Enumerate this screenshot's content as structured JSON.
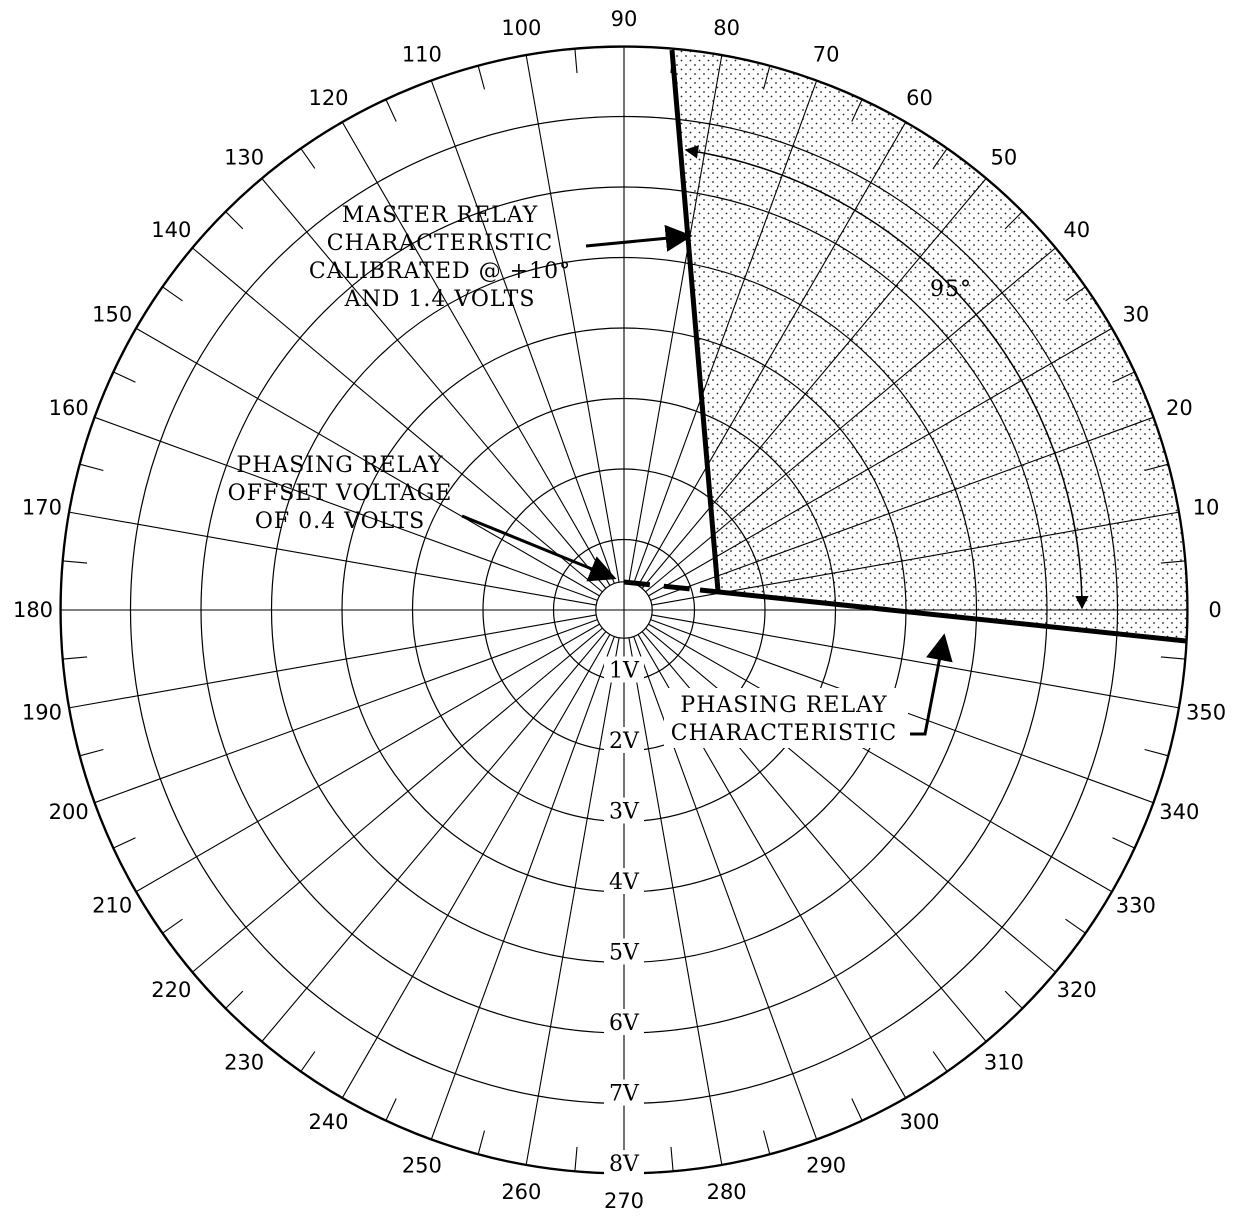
{
  "diagram": {
    "angle_labels": [
      "0",
      "10",
      "20",
      "30",
      "40",
      "50",
      "60",
      "70",
      "80",
      "90",
      "100",
      "110",
      "120",
      "130",
      "140",
      "150",
      "160",
      "170",
      "180",
      "190",
      "200",
      "210",
      "220",
      "230",
      "240",
      "250",
      "260",
      "270",
      "280",
      "290",
      "300",
      "310",
      "320",
      "330",
      "340",
      "350"
    ],
    "voltage_labels": [
      "1V",
      "2V",
      "3V",
      "4V",
      "5V",
      "6V",
      "7V",
      "8V"
    ],
    "angle_step_degrees": 10,
    "voltage_rings": [
      1,
      2,
      3,
      4,
      5,
      6,
      7,
      8
    ],
    "offset_circle_volts": 0.4,
    "master_relay": {
      "label_lines": [
        "MASTER RELAY",
        "CHARACTERISTIC",
        "CALIBRATED @ +10°",
        "AND 1.4 VOLTS"
      ],
      "calibration_angle_deg": 10,
      "calibration_volts": 1.4
    },
    "phasing_offset": {
      "label_lines": [
        "PHASING RELAY",
        "OFFSET VOLTAGE",
        "OF 0.4 VOLTS"
      ],
      "offset_volts": 0.4
    },
    "phasing_relay": {
      "label_lines": [
        "PHASING RELAY",
        "CHARACTERISTIC"
      ]
    },
    "sector_angle_label": "95°"
  }
}
